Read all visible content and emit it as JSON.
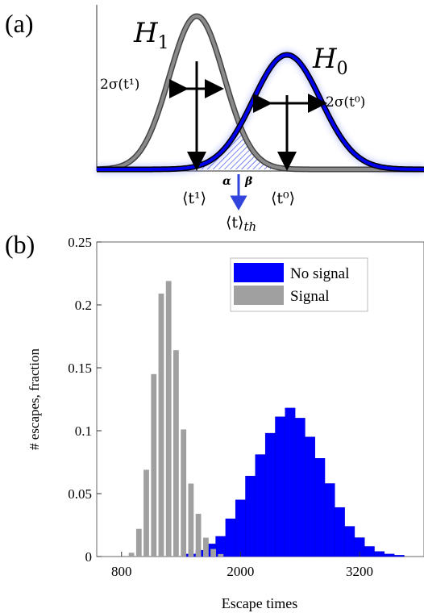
{
  "panel_a": {
    "label": "(a)",
    "h1_label": "H",
    "h1_sub": "1",
    "h0_label": "H",
    "h0_sub": "0",
    "sigma1_label": "2σ(t¹)",
    "sigma0_label": "2σ(t⁰)",
    "mean1_label": "⟨t¹⟩",
    "mean0_label": "⟨t⁰⟩",
    "threshold_label": "⟨t⟩",
    "threshold_sub": "th",
    "alpha_label": "α",
    "beta_label": "β",
    "colors": {
      "h1": "#888888",
      "h0": "#0000ee",
      "arrow": "#000000"
    }
  },
  "panel_b": {
    "label": "(b)"
  },
  "chart_data": {
    "type": "bar",
    "xlabel": "Escape times",
    "ylabel": "# escapes, fraction",
    "xlim": [
      550,
      3850
    ],
    "ylim": [
      0,
      0.25
    ],
    "xticks": [
      800,
      2000,
      3200
    ],
    "yticks": [
      0,
      0.05,
      0.1,
      0.15,
      0.2,
      0.25
    ],
    "ytick_labels": [
      "0",
      "0.05",
      "0.1",
      "0.15",
      "0.2",
      "0.25"
    ],
    "legend_position": "top-right",
    "grid": false,
    "series": [
      {
        "name": "No signal",
        "color": "#0000ff",
        "bin_width": 100,
        "x": [
          1500,
          1600,
          1700,
          1800,
          1900,
          2000,
          2100,
          2200,
          2300,
          2400,
          2500,
          2600,
          2700,
          2800,
          2900,
          3000,
          3100,
          3200,
          3300,
          3400,
          3500,
          3600
        ],
        "values": [
          0.002,
          0.005,
          0.01,
          0.016,
          0.03,
          0.045,
          0.064,
          0.081,
          0.098,
          0.111,
          0.118,
          0.11,
          0.095,
          0.078,
          0.058,
          0.039,
          0.024,
          0.015,
          0.008,
          0.004,
          0.002,
          0.001
        ]
      },
      {
        "name": "Signal",
        "color": "#a0a0a0",
        "bin_width": 55,
        "x": [
          900,
          975,
          1050,
          1125,
          1200,
          1275,
          1350,
          1425,
          1500,
          1575,
          1650,
          1725,
          1800
        ],
        "values": [
          0.003,
          0.022,
          0.069,
          0.145,
          0.209,
          0.219,
          0.164,
          0.101,
          0.058,
          0.034,
          0.015,
          0.006,
          0.002
        ]
      }
    ]
  }
}
